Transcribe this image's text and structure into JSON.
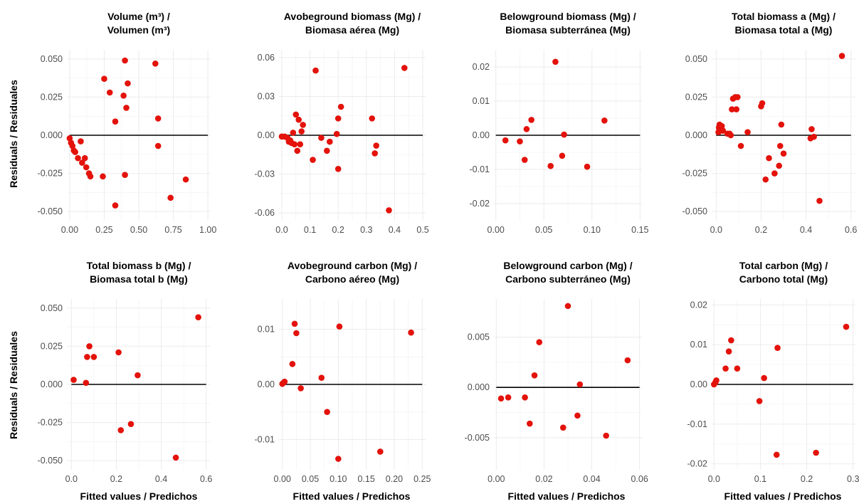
{
  "figure": {
    "ylabel": "Residuals / Residuales",
    "xlabel": "Fitted values / Predichos"
  },
  "chart_data": [
    {
      "type": "scatter",
      "title": [
        "Volume (m³) /",
        "Volumen (m³)"
      ],
      "xlim": [
        -0.02,
        1.02
      ],
      "ylim": [
        -0.056,
        0.056
      ],
      "xticks": [
        0,
        0.25,
        0.5,
        0.75,
        1.0
      ],
      "xtick_labels": [
        "0.00",
        "0.25",
        "0.50",
        "0.75",
        "1.00"
      ],
      "yticks": [
        -0.05,
        -0.025,
        0,
        0.025,
        0.05
      ],
      "ytick_labels": [
        "-0.050",
        "-0.025",
        "0.000",
        "0.025",
        "0.050"
      ],
      "reference_line_y": 0,
      "x": [
        0.0,
        0.01,
        0.02,
        0.03,
        0.04,
        0.06,
        0.08,
        0.09,
        0.11,
        0.12,
        0.14,
        0.15,
        0.25,
        0.24,
        0.29,
        0.33,
        0.33,
        0.39,
        0.4,
        0.4,
        0.41,
        0.42,
        0.62,
        0.64,
        0.64,
        0.73,
        0.84
      ],
      "y": [
        -0.002,
        -0.005,
        -0.007,
        -0.01,
        -0.011,
        -0.015,
        -0.004,
        -0.018,
        -0.015,
        -0.021,
        -0.025,
        -0.027,
        0.037,
        -0.027,
        0.028,
        0.009,
        -0.046,
        0.026,
        -0.026,
        0.049,
        0.018,
        0.034,
        0.047,
        0.011,
        -0.007,
        -0.041,
        -0.029
      ]
    },
    {
      "type": "scatter",
      "title": [
        "Avobeground biomass (Mg) /",
        "Biomasa aérea (Mg)"
      ],
      "xlim": [
        -0.01,
        0.51
      ],
      "ylim": [
        -0.066,
        0.066
      ],
      "xticks": [
        0,
        0.1,
        0.2,
        0.3,
        0.4,
        0.5
      ],
      "xtick_labels": [
        "0.0",
        "0.1",
        "0.2",
        "0.3",
        "0.4",
        "0.5"
      ],
      "yticks": [
        -0.06,
        -0.03,
        0,
        0.03,
        0.06
      ],
      "ytick_labels": [
        "-0.06",
        "-0.03",
        "0.00",
        "0.03",
        "0.06"
      ],
      "reference_line_y": 0,
      "x": [
        0.0,
        0.01,
        0.02,
        0.025,
        0.03,
        0.035,
        0.04,
        0.045,
        0.05,
        0.055,
        0.06,
        0.065,
        0.07,
        0.075,
        0.11,
        0.12,
        0.14,
        0.16,
        0.17,
        0.195,
        0.2,
        0.2,
        0.21,
        0.32,
        0.33,
        0.335,
        0.38,
        0.435
      ],
      "y": [
        -0.001,
        -0.001,
        -0.002,
        -0.005,
        -0.004,
        -0.006,
        0.002,
        -0.007,
        0.016,
        -0.012,
        0.012,
        -0.007,
        0.003,
        0.008,
        -0.019,
        0.05,
        -0.002,
        -0.012,
        -0.005,
        0.001,
        -0.026,
        0.013,
        0.022,
        0.013,
        -0.014,
        -0.008,
        -0.058,
        0.052
      ]
    },
    {
      "type": "scatter",
      "title": [
        "Belowground biomass (Mg) /",
        "Biomasa subterránea (Mg)"
      ],
      "xlim": [
        -0.002,
        0.152
      ],
      "ylim": [
        -0.025,
        0.025
      ],
      "xticks": [
        0,
        0.05,
        0.1,
        0.15
      ],
      "xtick_labels": [
        "0.00",
        "0.05",
        "0.10",
        "0.15"
      ],
      "yticks": [
        -0.02,
        -0.01,
        0,
        0.01,
        0.02
      ],
      "ytick_labels": [
        "-0.02",
        "-0.01",
        "0.00",
        "0.01",
        "0.02"
      ],
      "reference_line_y": 0,
      "x": [
        0.01,
        0.025,
        0.03,
        0.032,
        0.037,
        0.057,
        0.062,
        0.069,
        0.071,
        0.095,
        0.113
      ],
      "y": [
        -0.0015,
        -0.0018,
        -0.0072,
        0.0018,
        0.0045,
        -0.009,
        0.0215,
        -0.006,
        0.0002,
        -0.0092,
        0.0043
      ]
    },
    {
      "type": "scatter",
      "title": [
        "Total biomass a (Mg) /",
        "Biomasa total a (Mg)"
      ],
      "xlim": [
        -0.02,
        0.62
      ],
      "ylim": [
        -0.056,
        0.056
      ],
      "xticks": [
        0,
        0.2,
        0.4,
        0.6
      ],
      "xtick_labels": [
        "0.0",
        "0.2",
        "0.4",
        "0.6"
      ],
      "yticks": [
        -0.05,
        -0.025,
        0,
        0.025,
        0.05
      ],
      "ytick_labels": [
        "-0.050",
        "-0.025",
        "0.000",
        "0.025",
        "0.050"
      ],
      "reference_line_y": 0,
      "x": [
        0.01,
        0.012,
        0.015,
        0.02,
        0.025,
        0.03,
        0.05,
        0.06,
        0.065,
        0.07,
        0.075,
        0.085,
        0.09,
        0.095,
        0.11,
        0.14,
        0.2,
        0.205,
        0.22,
        0.235,
        0.26,
        0.28,
        0.285,
        0.29,
        0.3,
        0.42,
        0.425,
        0.435,
        0.46,
        0.56
      ],
      "y": [
        0.002,
        0.005,
        0.007,
        0.003,
        0.006,
        0.003,
        0.001,
        0.001,
        0.0,
        0.017,
        0.024,
        0.025,
        0.017,
        0.025,
        -0.007,
        0.002,
        0.019,
        0.021,
        -0.029,
        -0.015,
        -0.025,
        -0.02,
        -0.007,
        0.007,
        -0.012,
        -0.002,
        0.004,
        -0.001,
        -0.043,
        0.052
      ]
    },
    {
      "type": "scatter",
      "title": [
        "Total biomass b (Mg) /",
        "Biomasa total b (Mg)"
      ],
      "xlim": [
        -0.02,
        0.62
      ],
      "ylim": [
        -0.056,
        0.056
      ],
      "xticks": [
        0,
        0.2,
        0.4,
        0.6
      ],
      "xtick_labels": [
        "0.0",
        "0.2",
        "0.4",
        "0.6"
      ],
      "yticks": [
        -0.05,
        -0.025,
        0,
        0.025,
        0.05
      ],
      "ytick_labels": [
        "-0.050",
        "-0.025",
        "0.000",
        "0.025",
        "0.050"
      ],
      "reference_line_y": 0,
      "x": [
        0.01,
        0.065,
        0.07,
        0.08,
        0.1,
        0.21,
        0.22,
        0.265,
        0.295,
        0.465,
        0.565
      ],
      "y": [
        0.003,
        0.001,
        0.018,
        0.025,
        0.018,
        0.021,
        -0.03,
        -0.026,
        0.006,
        -0.048,
        0.044
      ]
    },
    {
      "type": "scatter",
      "title": [
        "Avobeground carbon (Mg) /",
        "Carbono aéreo (Mg)"
      ],
      "xlim": [
        -0.006,
        0.256
      ],
      "ylim": [
        -0.0155,
        0.0155
      ],
      "xticks": [
        0,
        0.05,
        0.1,
        0.15,
        0.2,
        0.25
      ],
      "xtick_labels": [
        "0.00",
        "0.05",
        "0.10",
        "0.15",
        "0.20",
        "0.25"
      ],
      "yticks": [
        -0.01,
        0,
        0.01
      ],
      "ytick_labels": [
        "-0.01",
        "0.00",
        "0.01"
      ],
      "reference_line_y": 0,
      "x": [
        0.0,
        0.002,
        0.004,
        0.018,
        0.022,
        0.025,
        0.033,
        0.07,
        0.08,
        0.1,
        0.102,
        0.175,
        0.23
      ],
      "y": [
        0.0001,
        0.0003,
        0.0005,
        0.0037,
        0.011,
        0.0093,
        -0.0007,
        0.0012,
        -0.005,
        -0.0135,
        0.0105,
        -0.0122,
        0.0094
      ]
    },
    {
      "type": "scatter",
      "title": [
        "Belowground carbon (Mg) /",
        "Carbono subterráneo (Mg)"
      ],
      "xlim": [
        -0.001,
        0.061
      ],
      "ylim": [
        -0.0082,
        0.0088
      ],
      "xticks": [
        0,
        0.02,
        0.04,
        0.06
      ],
      "xtick_labels": [
        "0.00",
        "0.02",
        "0.04",
        "0.06"
      ],
      "yticks": [
        -0.005,
        0,
        0.005
      ],
      "ytick_labels": [
        "-0.005",
        "0.000",
        "0.005"
      ],
      "reference_line_y": 0,
      "x": [
        0.002,
        0.005,
        0.012,
        0.014,
        0.016,
        0.018,
        0.028,
        0.03,
        0.034,
        0.035,
        0.046,
        0.055
      ],
      "y": [
        -0.0011,
        -0.001,
        -0.001,
        -0.0036,
        0.0012,
        0.0045,
        -0.004,
        0.0081,
        -0.0028,
        0.0003,
        -0.0048,
        0.0027
      ]
    },
    {
      "type": "scatter",
      "title": [
        "Total carbon (Mg) /",
        "Carbono total (Mg)"
      ],
      "xlim": [
        -0.005,
        0.305
      ],
      "ylim": [
        -0.0215,
        0.0215
      ],
      "xticks": [
        0,
        0.1,
        0.2,
        0.3
      ],
      "xtick_labels": [
        "0.0",
        "0.1",
        "0.2",
        "0.3"
      ],
      "yticks": [
        -0.02,
        -0.01,
        0,
        0.01,
        0.02
      ],
      "ytick_labels": [
        "-0.02",
        "-0.01",
        "0.00",
        "0.01",
        "0.02"
      ],
      "reference_line_y": 0,
      "x": [
        0.0,
        0.003,
        0.005,
        0.025,
        0.032,
        0.037,
        0.05,
        0.098,
        0.108,
        0.135,
        0.137,
        0.22,
        0.285
      ],
      "y": [
        0.0,
        0.0005,
        0.001,
        0.004,
        0.0083,
        0.0111,
        0.004,
        -0.0042,
        0.0016,
        -0.0177,
        0.0092,
        -0.0172,
        0.0145
      ]
    }
  ]
}
